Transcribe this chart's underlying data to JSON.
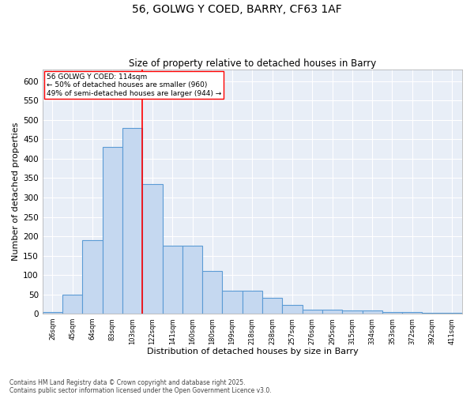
{
  "title": "56, GOLWG Y COED, BARRY, CF63 1AF",
  "subtitle": "Size of property relative to detached houses in Barry",
  "xlabel": "Distribution of detached houses by size in Barry",
  "ylabel": "Number of detached properties",
  "bar_color": "#c5d8f0",
  "bar_edge_color": "#5b9bd5",
  "bg_color": "#e8eef7",
  "annotation_box_text": "56 GOLWG Y COED: 114sqm\n← 50% of detached houses are smaller (960)\n49% of semi-detached houses are larger (944) →",
  "vline_x": 4.5,
  "vline_color": "red",
  "footer": "Contains HM Land Registry data © Crown copyright and database right 2025.\nContains public sector information licensed under the Open Government Licence v3.0.",
  "tick_labels": [
    "26sqm",
    "45sqm",
    "64sqm",
    "83sqm",
    "103sqm",
    "122sqm",
    "141sqm",
    "160sqm",
    "180sqm",
    "199sqm",
    "218sqm",
    "238sqm",
    "257sqm",
    "276sqm",
    "295sqm",
    "315sqm",
    "334sqm",
    "353sqm",
    "372sqm",
    "392sqm",
    "411sqm"
  ],
  "bar_heights": [
    5,
    50,
    190,
    430,
    480,
    335,
    175,
    175,
    110,
    60,
    60,
    42,
    22,
    10,
    10,
    8,
    8,
    5,
    5,
    3,
    3
  ],
  "ylim": [
    0,
    630
  ],
  "yticks": [
    0,
    50,
    100,
    150,
    200,
    250,
    300,
    350,
    400,
    450,
    500,
    550,
    600
  ]
}
